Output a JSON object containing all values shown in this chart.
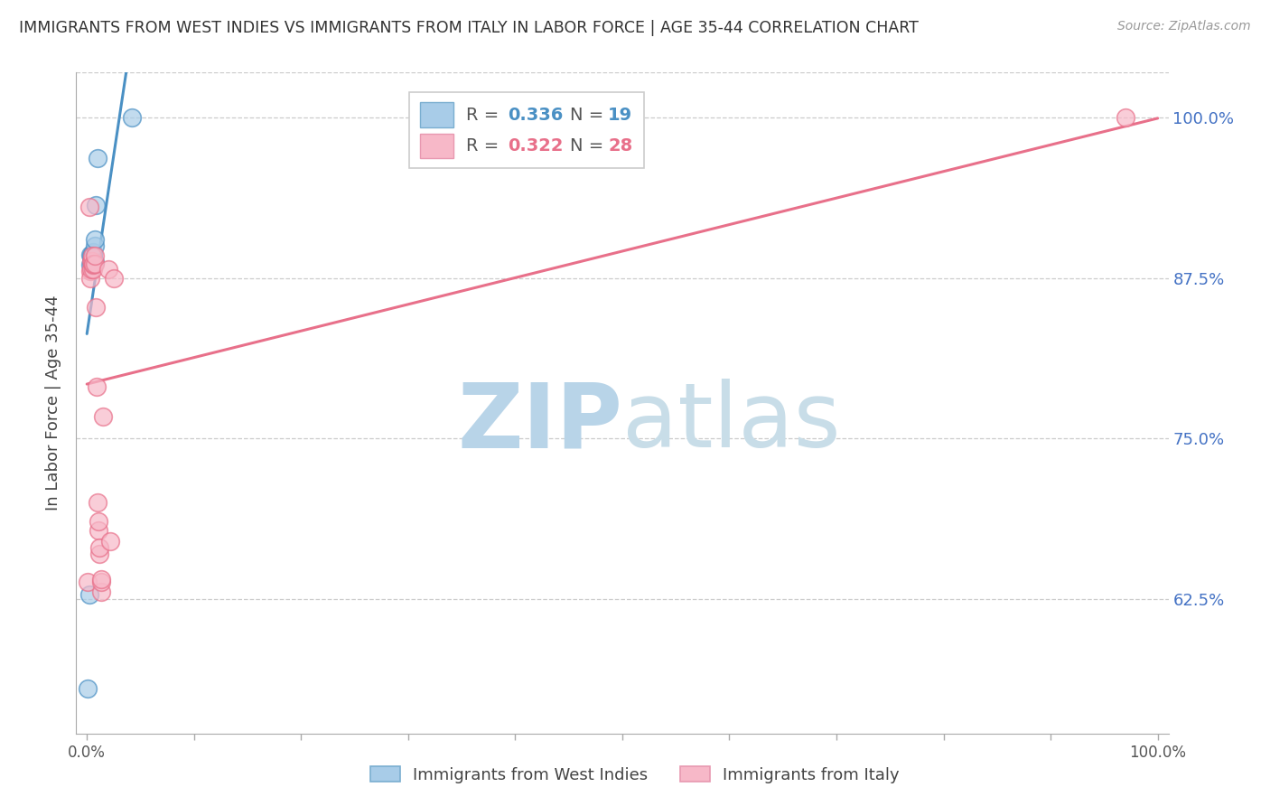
{
  "title": "IMMIGRANTS FROM WEST INDIES VS IMMIGRANTS FROM ITALY IN LABOR FORCE | AGE 35-44 CORRELATION CHART",
  "source": "Source: ZipAtlas.com",
  "ylabel": "In Labor Force | Age 35-44",
  "xlim": [
    0.0,
    1.0
  ],
  "ylim": [
    0.52,
    1.035
  ],
  "yticks": [
    0.625,
    0.75,
    0.875,
    1.0
  ],
  "ytick_labels": [
    "62.5%",
    "75.0%",
    "87.5%",
    "100.0%"
  ],
  "legend_r1": "0.336",
  "legend_n1": "19",
  "legend_r2": "0.322",
  "legend_n2": "28",
  "series1_color": "#a8cce8",
  "series2_color": "#f7b8c8",
  "line1_color": "#4a90c4",
  "line2_color": "#e8708a",
  "legend_box_color1": "#a8cce8",
  "legend_box_color2": "#f7b8c8",
  "legend_box_edge1": "#7aaed0",
  "legend_box_edge2": "#e898b0",
  "watermark_zip_color": "#b8d4e8",
  "watermark_atlas_color": "#c8dde8",
  "series1_label": "Immigrants from West Indies",
  "series2_label": "Immigrants from Italy",
  "west_indies_x": [
    0.001,
    0.002,
    0.003,
    0.003,
    0.004,
    0.004,
    0.005,
    0.005,
    0.006,
    0.006,
    0.006,
    0.006,
    0.006,
    0.007,
    0.007,
    0.007,
    0.008,
    0.01,
    0.042
  ],
  "west_indies_y": [
    0.555,
    0.628,
    0.885,
    0.893,
    0.887,
    0.892,
    0.887,
    0.893,
    0.886,
    0.888,
    0.89,
    0.893,
    0.895,
    0.887,
    0.9,
    0.905,
    0.932,
    0.968,
    1.0
  ],
  "italy_x": [
    0.001,
    0.002,
    0.003,
    0.003,
    0.004,
    0.004,
    0.005,
    0.005,
    0.006,
    0.006,
    0.006,
    0.007,
    0.007,
    0.008,
    0.009,
    0.01,
    0.011,
    0.011,
    0.012,
    0.012,
    0.013,
    0.013,
    0.013,
    0.015,
    0.02,
    0.022,
    0.025,
    0.97
  ],
  "italy_y": [
    0.638,
    0.93,
    0.88,
    0.875,
    0.882,
    0.888,
    0.888,
    0.892,
    0.882,
    0.885,
    0.886,
    0.886,
    0.892,
    0.852,
    0.79,
    0.7,
    0.678,
    0.685,
    0.66,
    0.665,
    0.63,
    0.638,
    0.64,
    0.767,
    0.882,
    0.67,
    0.875,
    1.0
  ],
  "background_color": "#ffffff",
  "grid_color": "#cccccc",
  "right_tick_color": "#4472c4",
  "title_color": "#333333",
  "source_color": "#999999"
}
